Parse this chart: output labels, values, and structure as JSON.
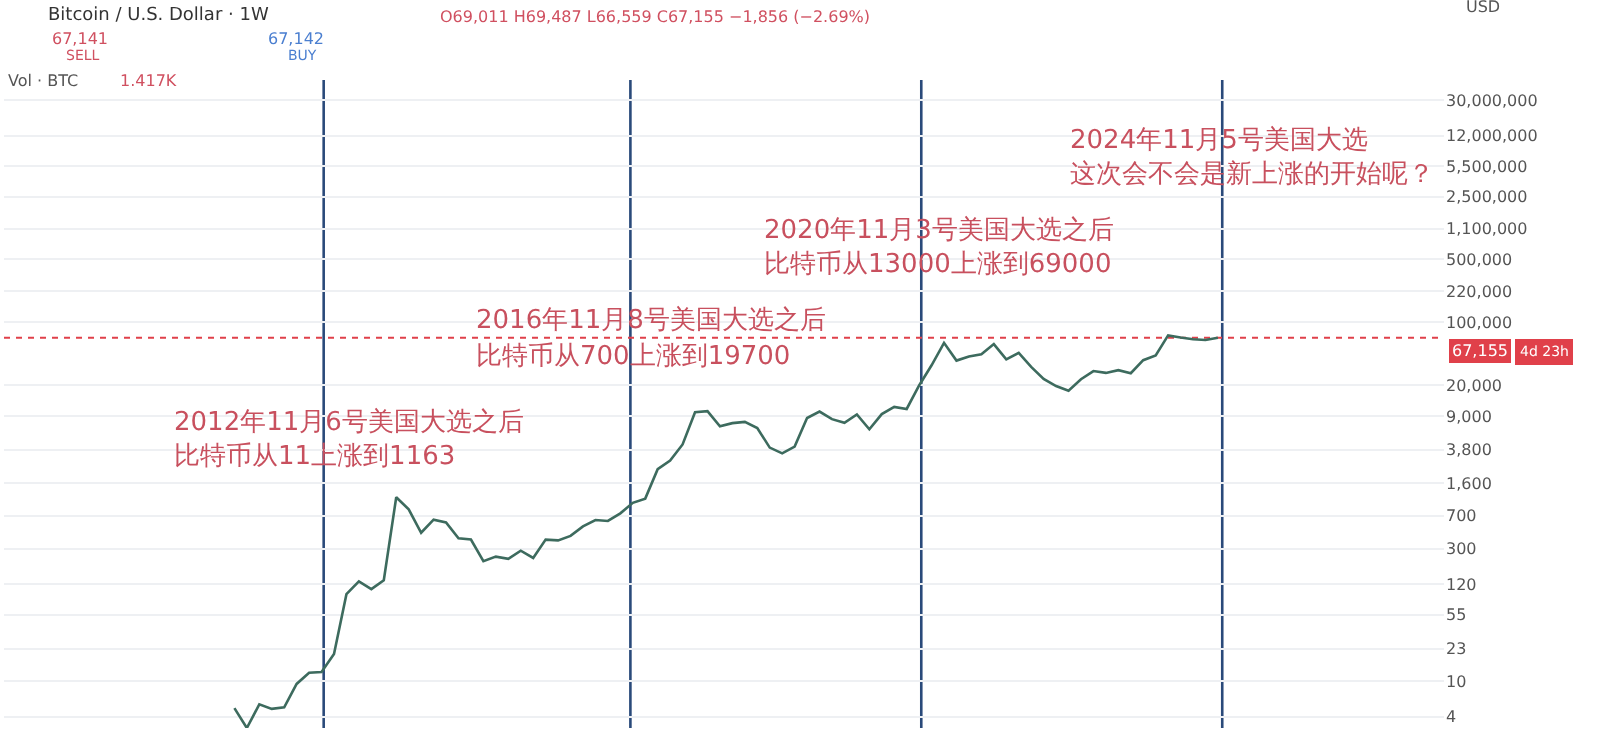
{
  "chart_data": {
    "type": "line",
    "title": "Bitcoin / U.S. Dollar · 1W",
    "subtitle": "O69,011 H69,487 L66,559 C67,155 −1,856 (−2.69%)",
    "categories": [
      null,
      null,
      null,
      null,
      null,
      null,
      null,
      null,
      null,
      null,
      null,
      null,
      null,
      null,
      null,
      null,
      null,
      null,
      null,
      null,
      null,
      null,
      null,
      null,
      null,
      null,
      null,
      null,
      null,
      null,
      null,
      null,
      null,
      null,
      null,
      null,
      null,
      null,
      null,
      null,
      null,
      null,
      null,
      null,
      null,
      null,
      null,
      null,
      null,
      null,
      null,
      null,
      null,
      null,
      null,
      null,
      null,
      null,
      null,
      null,
      null,
      null,
      null,
      null,
      null,
      null,
      null,
      null,
      null,
      null,
      null,
      null,
      null,
      null,
      null,
      null,
      null,
      null,
      null,
      null
    ],
    "series": [
      {
        "color": "#3d6b5e",
        "values": [
          5,
          3,
          5.5,
          4.9,
          5.1,
          9.3,
          12.4,
          12.6,
          20,
          93,
          129,
          106,
          133,
          1120,
          820,
          450,
          630,
          585,
          390,
          378,
          217,
          244,
          230,
          284,
          236,
          377,
          370,
          415,
          530,
          624,
          609,
          740,
          970,
          1080,
          2300,
          2870,
          4340,
          9900,
          10200,
          6900,
          7500,
          7730,
          6620,
          4000,
          3450,
          4100,
          8550,
          10100,
          8300,
          7550,
          9350,
          6400,
          9450,
          11350,
          10780,
          19700,
          33100,
          58800,
          37300,
          41500,
          43800,
          57000,
          38500,
          45500,
          31800,
          23300,
          19400,
          17200,
          23100,
          28500,
          27200,
          29200,
          27000,
          37700,
          42600,
          71300,
          67500,
          64600,
          63300,
          67155
        ]
      }
    ],
    "ylim": [
      3,
      50000000
    ],
    "yticks": [
      4,
      10,
      23,
      55,
      120,
      300,
      700,
      {
        "value": 1600,
        "label": "1,600"
      },
      {
        "value": 3800,
        "label": "3,800"
      },
      {
        "value": 9000,
        "label": "9,000"
      },
      {
        "value": 20000,
        "label": "20,000"
      },
      {
        "value": 100000,
        "label": "100,000"
      },
      {
        "value": 220000,
        "label": "220,000"
      },
      {
        "value": 500000,
        "label": "500,000"
      },
      {
        "value": 1100000,
        "label": "1,100,000"
      },
      {
        "value": 2500000,
        "label": "2,500,000"
      },
      {
        "value": 5500000,
        "label": "5,500,000"
      },
      {
        "value": 12000000,
        "label": "12,000,000"
      },
      {
        "value": 30000000,
        "label": "30,000,000"
      }
    ],
    "log": "y",
    "grid": "y",
    "tick_labels": "y",
    "marker": "none",
    "line_style": "solid",
    "ref_lines": [
      {
        "axis": "x",
        "color": "#2a4a7a",
        "line_style": "solid"
      },
      {
        "axis": "x",
        "color": "#2a4a7a",
        "line_style": "solid"
      },
      {
        "axis": "x",
        "color": "#2a4a7a",
        "line_style": "solid"
      },
      {
        "axis": "x",
        "color": "#2a4a7a",
        "line_style": "solid"
      },
      {
        "axis": "y",
        "value": 67155,
        "label": "67,155",
        "color": "#e0404a",
        "line_style": "dotted"
      }
    ],
    "annotations": [
      "67,141",
      "SELL",
      "67,142",
      "BUY",
      "Vol · BTC",
      "1.417K",
      "USD",
      "4d 23h",
      "2012年11月6号美国大选之后",
      "比特币从11上涨到1163",
      "2016年11月8号美国大选之后",
      "比特币从700上涨到19700",
      "2020年11月3号美国大选之后",
      "比特币从13000上涨到69000",
      "2024年11月5号美国大选",
      "这次会不会是新上涨的开始呢？"
    ]
  }
}
